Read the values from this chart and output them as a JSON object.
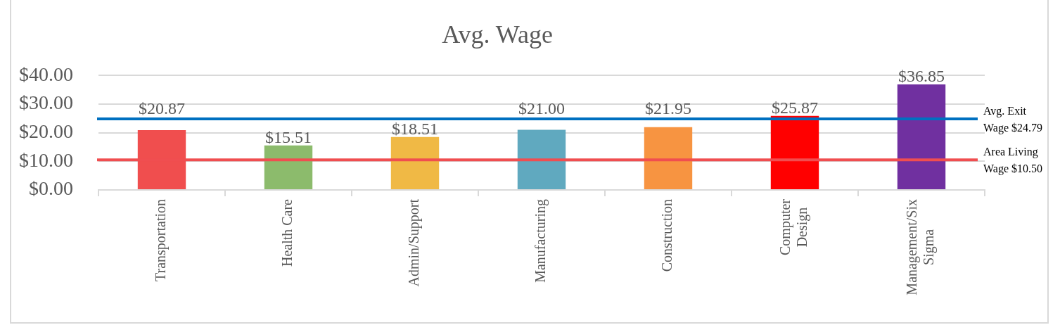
{
  "chart_data": {
    "type": "bar",
    "title": "Avg. Wage",
    "categories": [
      "Transportation",
      "Health Care",
      "Admin/Support",
      "Manufacturing",
      "Construction",
      "Computer Design",
      "Management/Six Sigma"
    ],
    "values": [
      20.87,
      15.51,
      18.51,
      21.0,
      21.95,
      25.87,
      36.85
    ],
    "colors": [
      "#f04e4e",
      "#8cbb6c",
      "#f0b945",
      "#60a9bf",
      "#f79441",
      "#ff0000",
      "#7030a0"
    ],
    "value_labels": [
      "$20.87",
      "$15.51",
      "$18.51",
      "$21.00",
      "$21.95",
      "$25.87",
      "$36.85"
    ],
    "ylim": [
      0,
      40
    ],
    "yticks": [
      {
        "value": 0,
        "label": "$0.00"
      },
      {
        "value": 10,
        "label": "$10.00"
      },
      {
        "value": 20,
        "label": "$20.00"
      },
      {
        "value": 30,
        "label": "$30.00"
      },
      {
        "value": 40,
        "label": "$40.00"
      }
    ],
    "grid": "y",
    "ref_lines": [
      {
        "axis": "y",
        "value": 24.79,
        "label": "Avg. Exit Wage $24.79",
        "color": "#0070c0"
      },
      {
        "axis": "y",
        "value": 10.5,
        "label": "Area Living Wage $10.50",
        "color": "#f04e50"
      }
    ]
  }
}
